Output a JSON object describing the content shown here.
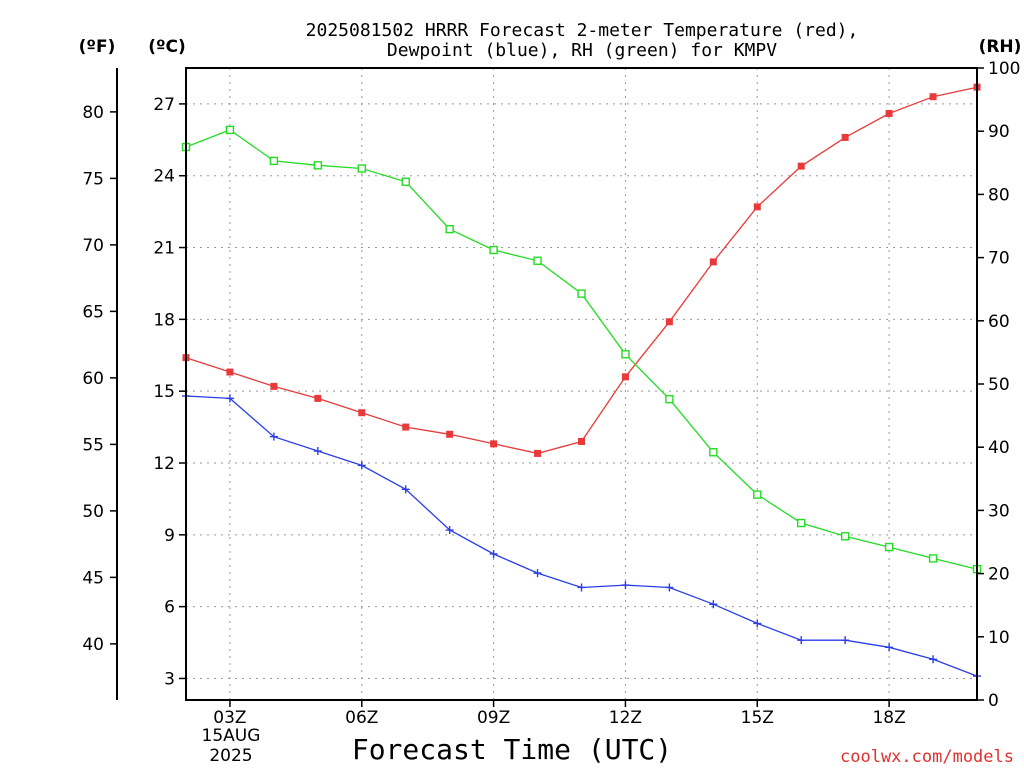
{
  "chart_data": {
    "type": "line",
    "title_line1": "2025081502 HRRR Forecast 2-meter Temperature (red),",
    "title_line2": "Dewpoint (blue), RH (green) for KMPV",
    "unit_f": "(ºF)",
    "unit_c": "(ºC)",
    "unit_rh": "(RH)",
    "xlabel": "Forecast Time (UTC)",
    "date_line1": "15AUG",
    "date_line2": "2025",
    "credit": "coolwx.com/models",
    "x_hours": [
      2,
      3,
      4,
      5,
      6,
      7,
      8,
      9,
      10,
      11,
      12,
      13,
      14,
      15,
      16,
      17,
      18,
      19,
      20
    ],
    "x_ticks": [
      {
        "hour": 3,
        "label": "03Z"
      },
      {
        "hour": 6,
        "label": "06Z"
      },
      {
        "hour": 9,
        "label": "09Z"
      },
      {
        "hour": 12,
        "label": "12Z"
      },
      {
        "hour": 15,
        "label": "15Z"
      },
      {
        "hour": 18,
        "label": "18Z"
      }
    ],
    "xlim": [
      2,
      20
    ],
    "celsius_ylim": [
      2.1,
      28.5
    ],
    "celsius_ticks": [
      3,
      6,
      9,
      12,
      15,
      18,
      21,
      24,
      27
    ],
    "fahrenheit_ticks": [
      40,
      45,
      50,
      55,
      60,
      65,
      70,
      75,
      80
    ],
    "rh_ylim": [
      0,
      100
    ],
    "rh_ticks": [
      0,
      10,
      20,
      30,
      40,
      50,
      60,
      70,
      80,
      90,
      100
    ],
    "series": [
      {
        "name": "Temperature",
        "axis": "celsius",
        "color": "#e83a3a",
        "marker": "filled-square",
        "values": [
          16.4,
          15.8,
          15.2,
          14.7,
          14.1,
          13.5,
          13.2,
          12.8,
          12.4,
          12.9,
          15.6,
          17.9,
          20.4,
          22.7,
          24.4,
          25.6,
          26.6,
          27.3,
          27.7
        ]
      },
      {
        "name": "Dewpoint",
        "axis": "celsius",
        "color": "#2a3ee8",
        "marker": "plus",
        "values": [
          14.8,
          14.7,
          13.1,
          12.5,
          11.9,
          10.9,
          9.2,
          8.2,
          7.4,
          6.8,
          6.9,
          6.8,
          6.1,
          5.3,
          4.6,
          4.6,
          4.3,
          3.8,
          3.1
        ]
      },
      {
        "name": "RH",
        "axis": "rh",
        "color": "#22dd22",
        "marker": "open-square",
        "values": [
          87.5,
          90.2,
          85.3,
          84.6,
          84.1,
          82.0,
          74.5,
          71.2,
          69.5,
          64.3,
          54.7,
          47.6,
          39.2,
          32.5,
          28.0,
          25.9,
          24.2,
          22.4,
          20.7
        ]
      }
    ],
    "grid": true
  }
}
